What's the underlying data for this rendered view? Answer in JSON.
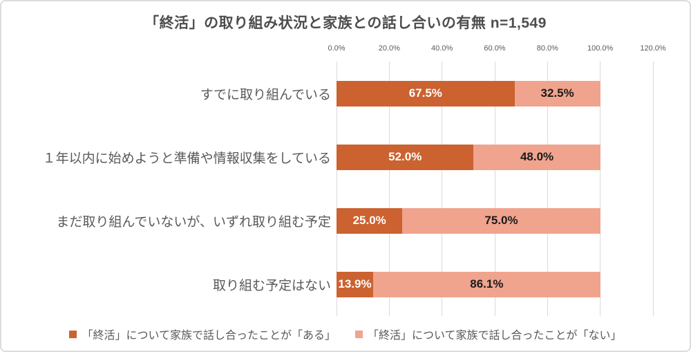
{
  "title_display": "「終活」の取り組み状況と家族との話し合いの有無 n=1,549",
  "chart_data": {
    "type": "bar",
    "orientation": "horizontal",
    "stacked": true,
    "title": "「終活」の取り組み状況と家族との話し合いの有無",
    "sample_size_annotation": "n=1,549",
    "categories": [
      "すでに取り組んでいる",
      "１年以内に始めようと準備や情報収集をしている",
      "まだ取り組んでいないが、いずれ取り組む予定",
      "取り組む予定はない"
    ],
    "series": [
      {
        "name": "「終活」について家族で話し合ったことが「ある」",
        "color": "#cb6230",
        "label_color": "#ffffff",
        "values": [
          67.5,
          52.0,
          25.0,
          13.9
        ]
      },
      {
        "name": "「終活」について家族で話し合ったことが「ない」",
        "color": "#f0a48e",
        "label_color": "#1a1a1a",
        "values": [
          32.5,
          48.0,
          75.0,
          86.1
        ]
      }
    ],
    "x_axis": {
      "ticks": [
        "0.0%",
        "20.0%",
        "40.0%",
        "60.0%",
        "80.0%",
        "100.0%",
        "120.0%"
      ],
      "tick_values": [
        0,
        20,
        40,
        60,
        80,
        100,
        120
      ],
      "max": 120
    },
    "grid": true,
    "grid_color": "#d9d9d9",
    "text_color": "#595959",
    "legend_position": "bottom",
    "value_label_format": "one-decimal-percent"
  }
}
